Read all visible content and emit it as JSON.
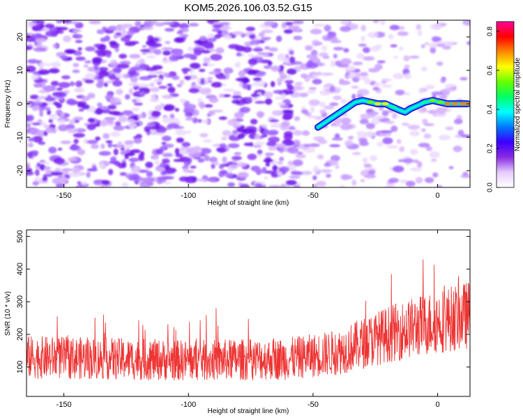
{
  "title": "KOM5.2026.106.03.52.G15",
  "chart_data": [
    {
      "type": "heatmap",
      "xlabel": "Height of straight line (km)",
      "ylabel": "Frequency (Hz)",
      "xlim": [
        -165,
        13
      ],
      "ylim": [
        -25,
        25
      ],
      "xticks": [
        -150,
        -100,
        -50,
        0
      ],
      "yticks": [
        -20,
        -10,
        0,
        10,
        20
      ],
      "ridge": {
        "x": [
          -48,
          -44,
          -40,
          -36,
          -33,
          -30,
          -27,
          -24,
          -21,
          -18,
          -15,
          -13,
          -11,
          -8,
          -5,
          -2,
          1,
          4,
          7,
          10,
          12
        ],
        "y": [
          -7,
          -5,
          -3,
          -1,
          0.5,
          1,
          0.5,
          0,
          0,
          -1,
          -2,
          -2.5,
          -1.5,
          -0.5,
          0.5,
          1,
          0.5,
          0,
          0,
          0,
          0
        ],
        "amp": [
          0.35,
          0.4,
          0.4,
          0.45,
          0.5,
          0.45,
          0.6,
          0.7,
          0.75,
          0.55,
          0.45,
          0.35,
          0.4,
          0.5,
          0.55,
          0.6,
          0.6,
          0.8,
          0.85,
          0.85,
          0.8
        ]
      },
      "colorbar": {
        "label": "Normalized spectral amplitude",
        "range": [
          0,
          0.85
        ],
        "ticks": [
          "0.0",
          "0.2",
          "0.4",
          "0.6",
          "0.8"
        ],
        "colors": [
          "#ffffff",
          "#e6ccff",
          "#8a2be2",
          "#3a00ff",
          "#0077ff",
          "#00ffff",
          "#00ff66",
          "#66ff00",
          "#ffff00",
          "#ff8800",
          "#ff0000",
          "#ff0099"
        ]
      }
    },
    {
      "type": "line",
      "xlabel": "Height of straight line (km)",
      "ylabel": "SNR (10 * v/v)",
      "xlim": [
        -165,
        13
      ],
      "ylim": [
        10,
        520
      ],
      "xticks": [
        -150,
        -100,
        -50,
        0
      ],
      "yticks": [
        100,
        200,
        300,
        400,
        500
      ],
      "series": [
        {
          "name": "SNR",
          "color": "#ee3333",
          "trend": {
            "x": [
              -165,
              -100,
              -60,
              -40,
              -20,
              0,
              13
            ],
            "y": [
              130,
              120,
              125,
              145,
              200,
              240,
              260
            ]
          },
          "noise_amplitude": 90,
          "n_points": 1400
        }
      ]
    }
  ]
}
